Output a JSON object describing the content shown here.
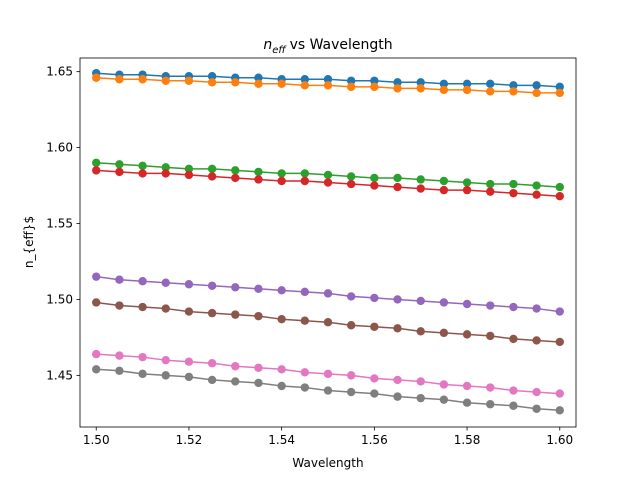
{
  "chart_data": {
    "type": "line",
    "title": "vs Wavelength",
    "title_symbol": "n",
    "title_subscript": "eff",
    "xlabel": "Wavelength",
    "ylabel": "n_{eff}$",
    "xlim": [
      1.4965,
      1.6035
    ],
    "ylim": [
      1.416,
      1.659
    ],
    "xticks": [
      1.5,
      1.52,
      1.54,
      1.56,
      1.58,
      1.6
    ],
    "xtick_labels": [
      "1.50",
      "1.52",
      "1.54",
      "1.56",
      "1.58",
      "1.60"
    ],
    "yticks": [
      1.45,
      1.5,
      1.55,
      1.6,
      1.65
    ],
    "ytick_labels": [
      "1.45",
      "1.50",
      "1.55",
      "1.60",
      "1.65"
    ],
    "grid": false,
    "x": [
      1.5,
      1.505,
      1.51,
      1.515,
      1.52,
      1.525,
      1.53,
      1.535,
      1.54,
      1.545,
      1.55,
      1.555,
      1.56,
      1.565,
      1.57,
      1.575,
      1.58,
      1.585,
      1.59,
      1.595,
      1.6
    ],
    "series": [
      {
        "color": "#1f77b4",
        "values": [
          1.649,
          1.648,
          1.648,
          1.647,
          1.647,
          1.647,
          1.646,
          1.646,
          1.645,
          1.645,
          1.645,
          1.644,
          1.644,
          1.643,
          1.643,
          1.642,
          1.642,
          1.642,
          1.641,
          1.641,
          1.64
        ]
      },
      {
        "color": "#ff7f0e",
        "values": [
          1.646,
          1.645,
          1.645,
          1.644,
          1.644,
          1.643,
          1.643,
          1.642,
          1.642,
          1.641,
          1.641,
          1.64,
          1.64,
          1.639,
          1.639,
          1.638,
          1.638,
          1.637,
          1.637,
          1.636,
          1.636
        ]
      },
      {
        "color": "#2ca02c",
        "values": [
          1.59,
          1.589,
          1.588,
          1.587,
          1.586,
          1.586,
          1.585,
          1.584,
          1.583,
          1.583,
          1.582,
          1.581,
          1.58,
          1.58,
          1.579,
          1.578,
          1.577,
          1.576,
          1.576,
          1.575,
          1.574
        ]
      },
      {
        "color": "#d62728",
        "values": [
          1.585,
          1.584,
          1.583,
          1.583,
          1.582,
          1.581,
          1.58,
          1.579,
          1.578,
          1.578,
          1.577,
          1.576,
          1.575,
          1.574,
          1.573,
          1.572,
          1.572,
          1.571,
          1.57,
          1.569,
          1.568
        ]
      },
      {
        "color": "#9467bd",
        "values": [
          1.515,
          1.513,
          1.512,
          1.511,
          1.51,
          1.509,
          1.508,
          1.507,
          1.506,
          1.505,
          1.504,
          1.502,
          1.501,
          1.5,
          1.499,
          1.498,
          1.497,
          1.496,
          1.495,
          1.494,
          1.492
        ]
      },
      {
        "color": "#8c564b",
        "values": [
          1.498,
          1.496,
          1.495,
          1.494,
          1.492,
          1.491,
          1.49,
          1.489,
          1.487,
          1.486,
          1.485,
          1.483,
          1.482,
          1.481,
          1.479,
          1.478,
          1.477,
          1.476,
          1.474,
          1.473,
          1.472
        ]
      },
      {
        "color": "#e377c2",
        "values": [
          1.464,
          1.463,
          1.462,
          1.46,
          1.459,
          1.458,
          1.456,
          1.455,
          1.454,
          1.452,
          1.451,
          1.45,
          1.448,
          1.447,
          1.446,
          1.444,
          1.443,
          1.442,
          1.44,
          1.439,
          1.438
        ]
      },
      {
        "color": "#7f7f7f",
        "values": [
          1.454,
          1.453,
          1.451,
          1.45,
          1.449,
          1.447,
          1.446,
          1.445,
          1.443,
          1.442,
          1.44,
          1.439,
          1.438,
          1.436,
          1.435,
          1.434,
          1.432,
          1.431,
          1.43,
          1.428,
          1.427
        ]
      }
    ]
  }
}
